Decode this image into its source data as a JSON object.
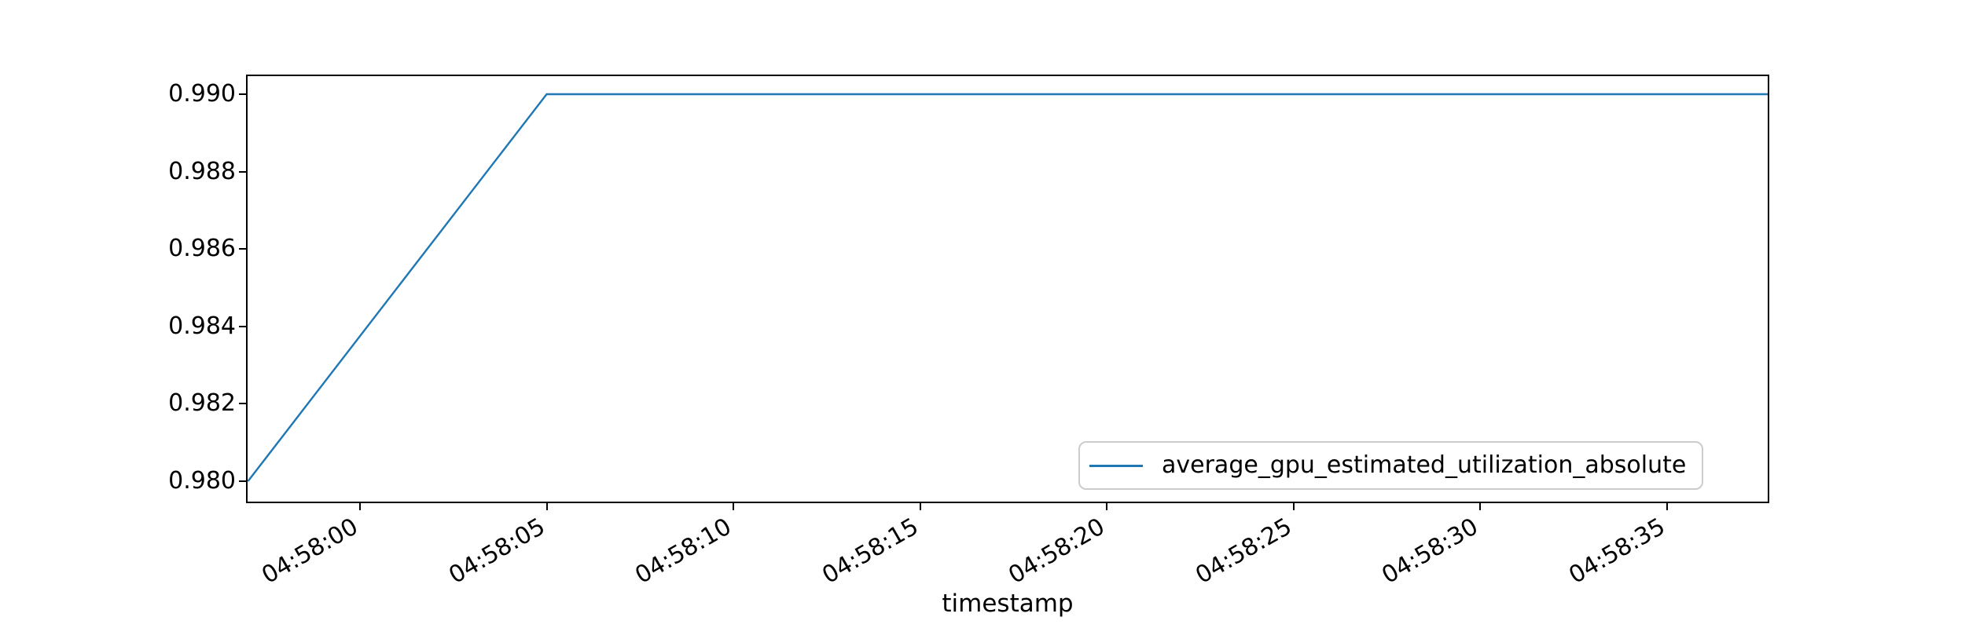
{
  "chart_data": {
    "type": "line",
    "title": "",
    "xlabel": "timestamp",
    "ylabel": "",
    "grid": false,
    "ylim": [
      0.9795,
      0.9905
    ],
    "xlim": [
      "04:57:57",
      "04:58:38"
    ],
    "x_ticks": [
      {
        "label": "04:58:00"
      },
      {
        "label": "04:58:05"
      },
      {
        "label": "04:58:10"
      },
      {
        "label": "04:58:15"
      },
      {
        "label": "04:58:20"
      },
      {
        "label": "04:58:25"
      },
      {
        "label": "04:58:30"
      },
      {
        "label": "04:58:35"
      }
    ],
    "y_ticks": [
      {
        "label": "0.980",
        "value": 0.98
      },
      {
        "label": "0.982",
        "value": 0.982
      },
      {
        "label": "0.984",
        "value": 0.984
      },
      {
        "label": "0.986",
        "value": 0.986
      },
      {
        "label": "0.988",
        "value": 0.988
      },
      {
        "label": "0.990",
        "value": 0.99
      }
    ],
    "legend": {
      "position": "lower right",
      "entries": [
        "average_gpu_estimated_utilization_absolute"
      ]
    },
    "series": [
      {
        "name": "average_gpu_estimated_utilization_absolute",
        "color": "#1f77b4",
        "points": [
          {
            "t": "04:57:57",
            "v": 0.98
          },
          {
            "t": "04:58:05",
            "v": 0.99
          },
          {
            "t": "04:58:38",
            "v": 0.99
          }
        ]
      }
    ]
  },
  "colors": {
    "line": "#1f77b4",
    "spine": "#000000",
    "legend_border": "#cccccc",
    "background": "#ffffff",
    "text": "#000000"
  }
}
